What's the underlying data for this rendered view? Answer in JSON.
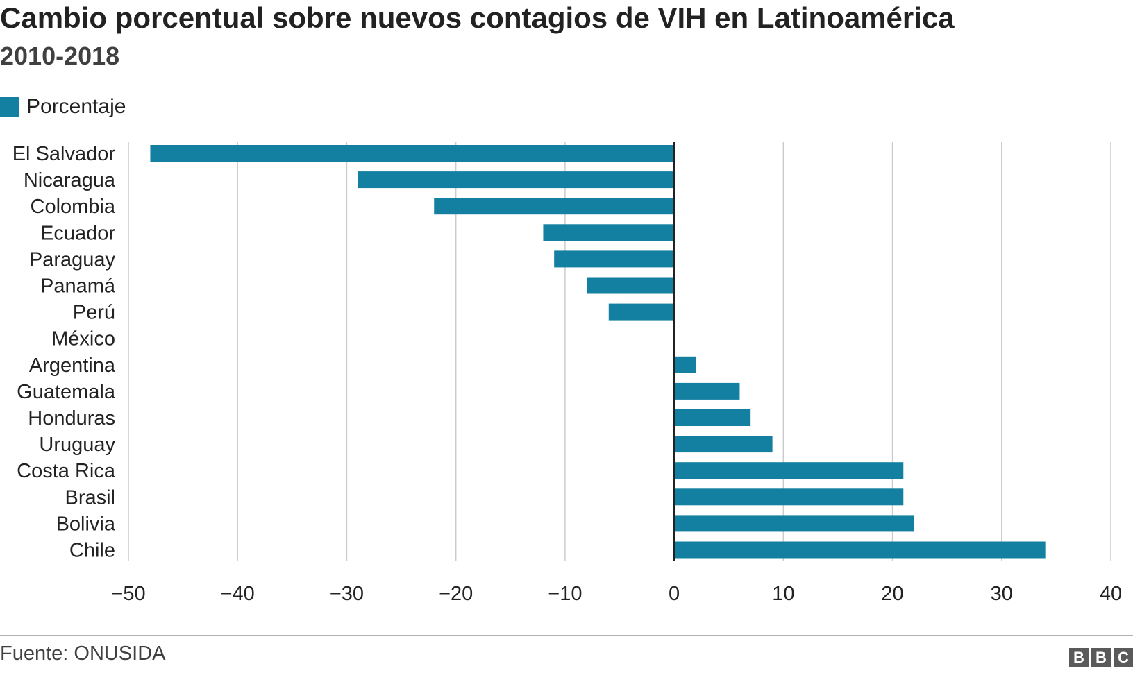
{
  "chart_data": {
    "type": "bar",
    "orientation": "horizontal",
    "title": "Cambio porcentual sobre nuevos contagios de VIH en Latinoamérica",
    "subtitle": "2010-2018",
    "legend": "Porcentaje",
    "legend_position": "top-left",
    "categories": [
      "El Salvador",
      "Nicaragua",
      "Colombia",
      "Ecuador",
      "Paraguay",
      "Panamá",
      "Perú",
      "México",
      "Argentina",
      "Guatemala",
      "Honduras",
      "Uruguay",
      "Costa Rica",
      "Brasil",
      "Bolivia",
      "Chile"
    ],
    "values": [
      -48,
      -29,
      -22,
      -12,
      -11,
      -8,
      -6,
      0,
      2,
      6,
      7,
      9,
      21,
      21,
      22,
      34
    ],
    "xlim": [
      -50,
      40
    ],
    "xticks": [
      -50,
      -40,
      -30,
      -20,
      -10,
      0,
      10,
      20,
      30,
      40
    ],
    "xtick_labels": [
      "−50",
      "−40",
      "−30",
      "−20",
      "−10",
      "0",
      "10",
      "20",
      "30",
      "40"
    ],
    "grid": true,
    "source": "Fuente: ONUSIDA"
  },
  "colors": {
    "bar": "#1380a1",
    "grid": "#cccccc",
    "zero_line": "#222222"
  },
  "brand": [
    "B",
    "B",
    "C"
  ]
}
